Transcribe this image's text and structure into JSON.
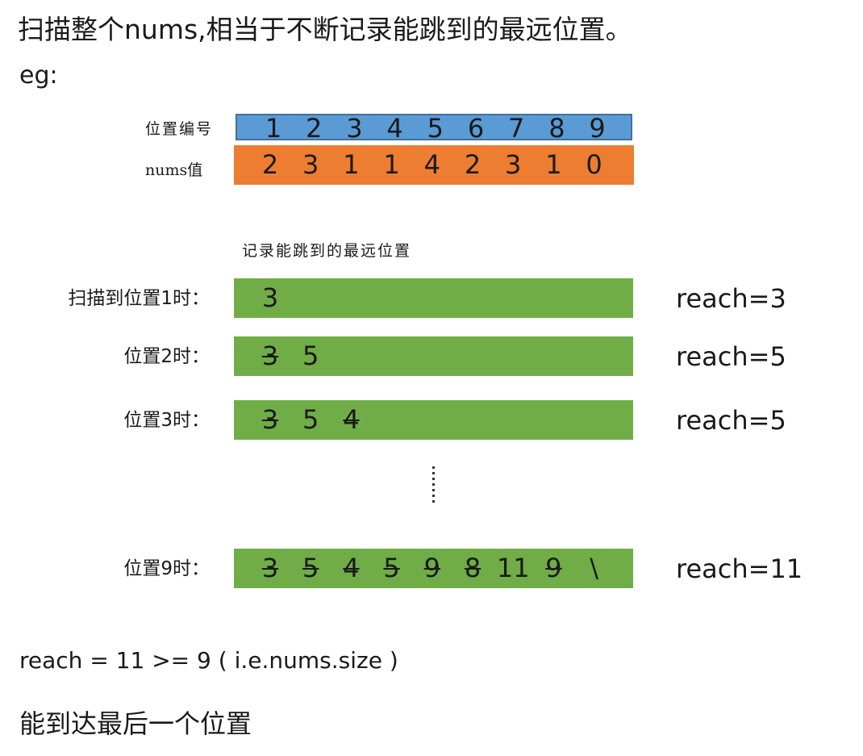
{
  "heading": "扫描整个nums,相当于不断记录能跳到的最远位置。",
  "eg": "eg:",
  "position_label": "位置编号",
  "nums_label": "nums值",
  "positions": [
    "1",
    "2",
    "3",
    "4",
    "5",
    "6",
    "7",
    "8",
    "9"
  ],
  "nums": [
    "2",
    "3",
    "1",
    "1",
    "4",
    "2",
    "3",
    "1",
    "0"
  ],
  "record_label": "记录能跳到的最远位置",
  "rows": [
    {
      "label": "扫描到位置1时：",
      "cells": [
        {
          "text": "3",
          "struck": false
        }
      ],
      "reach": "reach=3"
    },
    {
      "label": "位置2时：",
      "cells": [
        {
          "text": "3",
          "struck": true
        },
        {
          "text": "5",
          "struck": false
        }
      ],
      "reach": "reach=5"
    },
    {
      "label": "位置3时：",
      "cells": [
        {
          "text": "3",
          "struck": true
        },
        {
          "text": "5",
          "struck": false
        },
        {
          "text": "4",
          "struck": true
        }
      ],
      "reach": "reach=5"
    },
    {
      "label": "位置9时：",
      "cells": [
        {
          "text": "3",
          "struck": true
        },
        {
          "text": "5",
          "struck": true
        },
        {
          "text": "4",
          "struck": true
        },
        {
          "text": "5",
          "struck": true
        },
        {
          "text": "9",
          "struck": true
        },
        {
          "text": "8",
          "struck": true
        },
        {
          "text": "11",
          "struck": false
        },
        {
          "text": "9",
          "struck": true
        },
        {
          "text": "\\",
          "struck": false
        }
      ],
      "reach": "reach=11"
    }
  ],
  "summary": "reach = 11 >= 9 ( i.e.nums.size )",
  "conclusion": "能到达最后一个位置",
  "colors": {
    "position_bar": "#5b9bd5",
    "nums_bar": "#ed7d31",
    "record_bar": "#70ad47"
  }
}
